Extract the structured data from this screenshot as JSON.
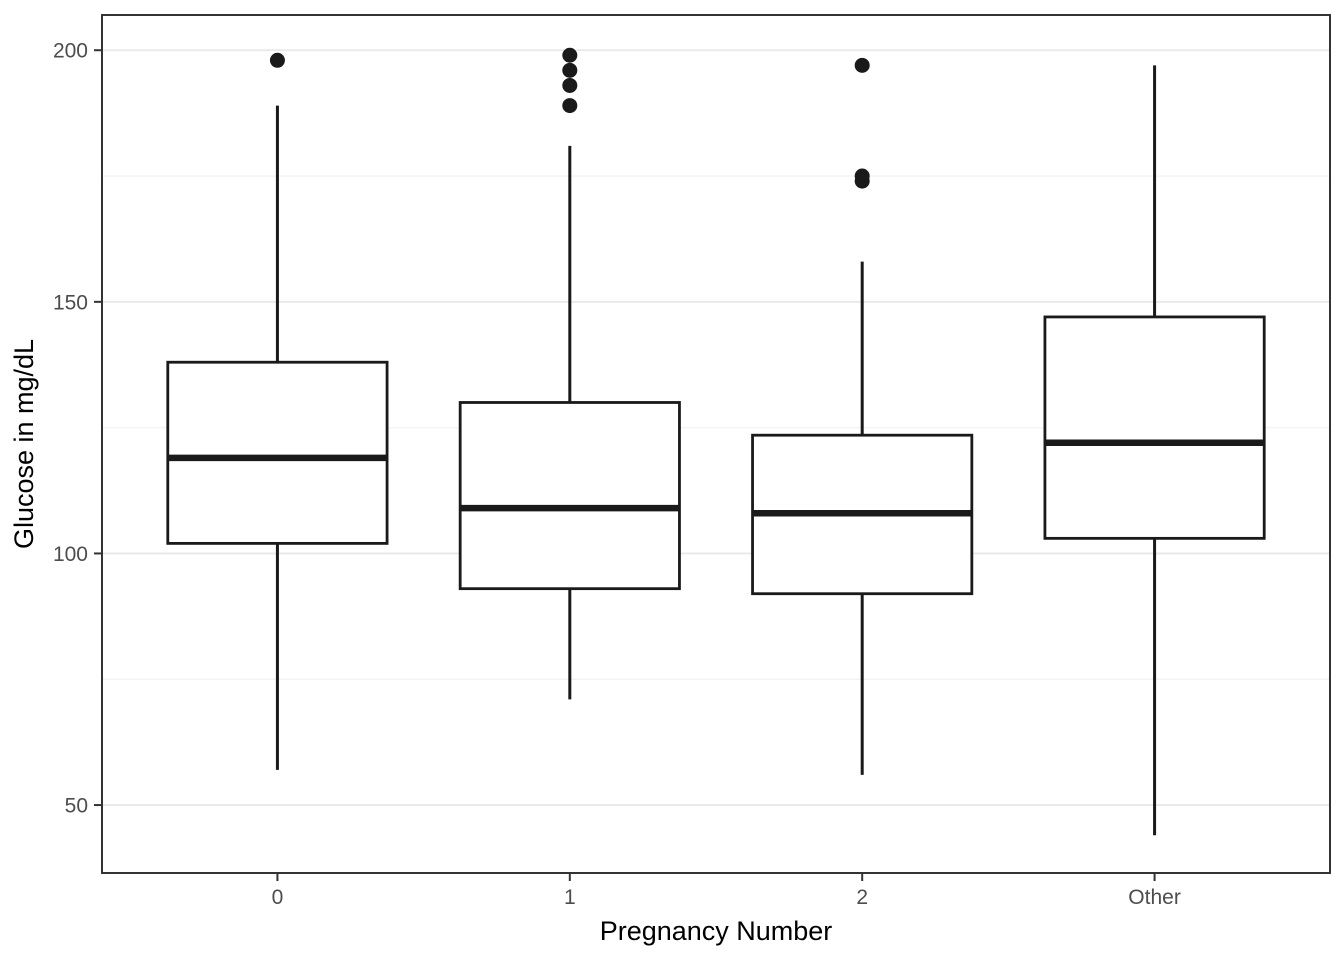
{
  "chart_data": {
    "type": "boxplot",
    "title": "",
    "xlabel": "Pregnancy Number",
    "ylabel": "Glucose in mg/dL",
    "categories": [
      "0",
      "1",
      "2",
      "Other"
    ],
    "y_ticks": [
      50,
      100,
      150,
      200
    ],
    "y_minor_ticks": [
      75,
      125,
      175
    ],
    "ylim": [
      36.5,
      207
    ],
    "grid": "major+minor horizontal",
    "legend": "none",
    "series": [
      {
        "category": "0",
        "lower_whisker": 57,
        "q1": 102,
        "median": 119,
        "q3": 138,
        "upper_whisker": 189,
        "outliers": [
          198
        ]
      },
      {
        "category": "1",
        "lower_whisker": 71,
        "q1": 93,
        "median": 109,
        "q3": 130,
        "upper_whisker": 181,
        "outliers": [
          199,
          196,
          193,
          189
        ]
      },
      {
        "category": "2",
        "lower_whisker": 56,
        "q1": 92,
        "median": 108,
        "q3": 123.5,
        "upper_whisker": 158,
        "outliers": [
          197,
          175,
          174
        ]
      },
      {
        "category": "Other",
        "lower_whisker": 44,
        "q1": 103,
        "median": 122,
        "q3": 147,
        "upper_whisker": 197,
        "outliers": []
      }
    ],
    "colors": {
      "background": "#ffffff",
      "panel_background": "#ffffff",
      "panel_border": "#333333",
      "grid_major": "#e8e8e8",
      "grid_minor": "#f4f4f4",
      "box_stroke": "#1a1a1a",
      "box_fill": "#ffffff",
      "median": "#1a1a1a",
      "whisker": "#1a1a1a",
      "outlier": "#1a1a1a",
      "tick_mark": "#333333",
      "tick_label": "#4d4d4d",
      "axis_title": "#000000"
    }
  }
}
